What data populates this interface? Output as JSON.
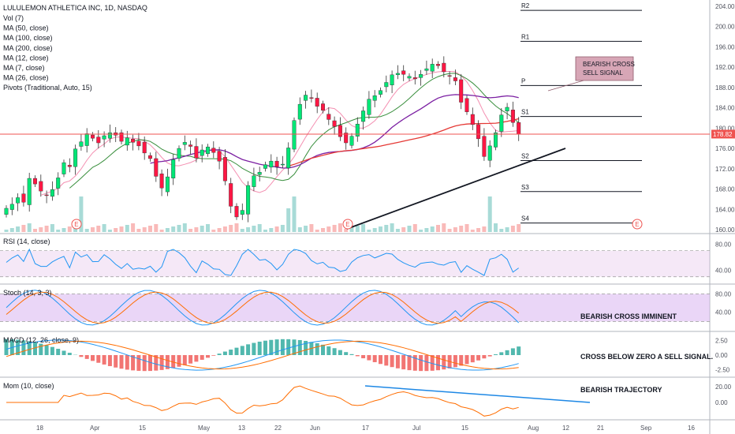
{
  "chart_data": {
    "type": "candlestick",
    "title": "LULULEMON ATHLETICA INC, 1D, NASDAQ",
    "indicators": [
      "Vol (7)",
      "MA (50, close)",
      "MA (100, close)",
      "MA (200, close)",
      "MA (12, close)",
      "MA (7, close)",
      "MA (26, close)",
      "Pivots (Traditional, Auto, 15)"
    ],
    "last_price": "178.82",
    "price_ticks": [
      "204.00",
      "200.00",
      "196.00",
      "192.00",
      "188.00",
      "184.00",
      "180.00",
      "176.00",
      "172.00",
      "168.00",
      "164.00",
      "160.00"
    ],
    "price_range": [
      160,
      204
    ],
    "x_ticks": [
      "18",
      "Apr",
      "15",
      "May",
      "13",
      "22",
      "Jun",
      "17",
      "Jul",
      "15",
      "Aug",
      "12",
      "21",
      "Sep",
      "16"
    ],
    "pivots": [
      {
        "label": "R2",
        "value": 203.2
      },
      {
        "label": "R1",
        "value": 197.1
      },
      {
        "label": "P",
        "value": 188.4
      },
      {
        "label": "S1",
        "value": 182.3
      },
      {
        "label": "S2",
        "value": 173.6
      },
      {
        "label": "S3",
        "value": 167.5
      },
      {
        "label": "S4",
        "value": 161.3
      }
    ],
    "callout": {
      "line1": "BEARISH CROSS",
      "line2": "SELL SIGNAL"
    },
    "earnings_marker": "E",
    "closes": [
      164.2,
      165.0,
      166.3,
      165.4,
      170.1,
      169.0,
      167.6,
      166.8,
      167.9,
      170.2,
      173.2,
      172.4,
      175.9,
      177.3,
      178.9,
      178.0,
      177.1,
      178.5,
      179.1,
      178.6,
      177.4,
      178.1,
      177.2,
      176.5,
      175.1,
      174.0,
      170.5,
      168.2,
      170.4,
      173.8,
      176.0,
      177.2,
      176.4,
      174.1,
      175.7,
      176.3,
      175.2,
      173.5,
      169.6,
      164.6,
      162.5,
      163.8,
      168.7,
      170.6,
      171.3,
      172.8,
      173.5,
      172.4,
      172.9,
      176.1,
      181.5,
      184.7,
      186.5,
      185.9,
      184.3,
      183.5,
      181.7,
      180.3,
      178.3,
      177.1,
      178.4,
      180.8,
      183.4,
      185.7,
      186.4,
      187.4,
      189.0,
      190.5,
      190.8,
      190.6,
      190.2,
      189.7,
      190.6,
      191.7,
      192.6,
      192.3,
      191.1,
      190.2,
      189.3,
      185.1,
      183.2,
      180.7,
      177.9,
      174.4,
      176.5,
      179.1,
      182.6,
      184.1,
      181.1,
      178.8
    ],
    "panes": [
      {
        "name": "RSI (14, close)",
        "ticks": [
          "80.00",
          "40.00"
        ]
      },
      {
        "name": "Stoch (14, 3, 3)",
        "ticks": [
          "80.00",
          "40.00"
        ],
        "note": "BEARISH CROSS IMMINENT"
      },
      {
        "name": "MACD (12, 26, close, 9)",
        "ticks": [
          "2.50",
          "0.00",
          "-2.50"
        ],
        "note": "CROSS BELOW ZERO A SELL SIGNAL."
      },
      {
        "name": "Mom (10, close)",
        "ticks": [
          "20.00",
          "0.00"
        ],
        "note": "BEARISH TRAJECTORY"
      }
    ],
    "colors": {
      "up": "#26a69a",
      "down": "#ef5350",
      "up_bright": "#00e676",
      "down_bright": "#ff1744",
      "ma_black": "#131722",
      "ma_red": "#e53935",
      "ma_purple": "#7b1fa2",
      "ma_green": "#388e3c",
      "ma_pink": "#f48fb1",
      "rsi": "#2196f3",
      "stoch_k": "#2196f3",
      "stoch_d": "#ff6d00",
      "macd": "#2196f3",
      "signal": "#ff6d00",
      "mom": "#ff6d00",
      "band": "#e1bee7",
      "trend": "#1e88e5",
      "callout_bg": "#d7a6b6"
    }
  }
}
